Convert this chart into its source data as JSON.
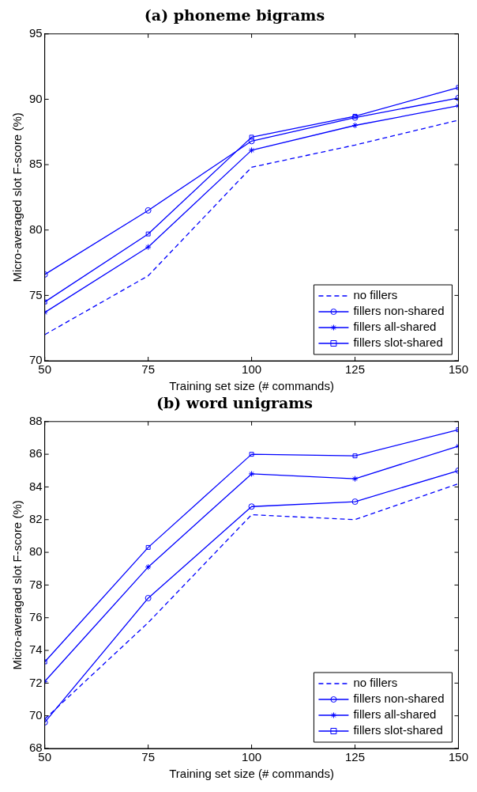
{
  "chart_data": [
    {
      "type": "line",
      "title": "(a) phoneme bigrams",
      "xlabel": "Training set size (# commands)",
      "ylabel": "Micro-averaged slot F-score (%)",
      "x": [
        50,
        75,
        100,
        125,
        150
      ],
      "xlim": [
        50,
        150
      ],
      "xticks": [
        50,
        75,
        100,
        125,
        150
      ],
      "ylim": [
        70,
        95
      ],
      "yticks": [
        70,
        75,
        80,
        85,
        90,
        95
      ],
      "grid": false,
      "legend": "bottom right",
      "series": [
        {
          "name": "no fillers",
          "color": "#0000ff",
          "line_style": "dashed",
          "marker": "none",
          "values": [
            72.0,
            76.5,
            84.8,
            86.5,
            88.4
          ]
        },
        {
          "name": "fillers non-shared",
          "color": "#0000ff",
          "line_style": "solid",
          "marker": "circle",
          "values": [
            76.6,
            81.5,
            86.8,
            88.6,
            90.1
          ]
        },
        {
          "name": "fillers all-shared",
          "color": "#0000ff",
          "line_style": "solid",
          "marker": "cross",
          "values": [
            73.7,
            78.7,
            86.1,
            88.0,
            89.5
          ]
        },
        {
          "name": "fillers slot-shared",
          "color": "#0000ff",
          "line_style": "solid",
          "marker": "square",
          "values": [
            74.5,
            79.7,
            87.1,
            88.7,
            90.9
          ]
        }
      ]
    },
    {
      "type": "line",
      "title": "(b) word unigrams",
      "xlabel": "Training set size (# commands)",
      "ylabel": "Micro-averaged slot F-score (%)",
      "x": [
        50,
        75,
        100,
        125,
        150
      ],
      "xlim": [
        50,
        150
      ],
      "xticks": [
        50,
        75,
        100,
        125,
        150
      ],
      "ylim": [
        68,
        88
      ],
      "yticks": [
        68,
        70,
        72,
        74,
        76,
        78,
        80,
        82,
        84,
        86,
        88
      ],
      "grid": false,
      "legend": "bottom right",
      "series": [
        {
          "name": "no fillers",
          "color": "#0000ff",
          "line_style": "dashed",
          "marker": "none",
          "values": [
            69.8,
            75.7,
            82.3,
            82.0,
            84.2
          ]
        },
        {
          "name": "fillers non-shared",
          "color": "#0000ff",
          "line_style": "solid",
          "marker": "circle",
          "values": [
            69.6,
            77.2,
            82.8,
            83.1,
            85.0
          ]
        },
        {
          "name": "fillers all-shared",
          "color": "#0000ff",
          "line_style": "solid",
          "marker": "cross",
          "values": [
            72.1,
            79.1,
            84.8,
            84.5,
            86.5
          ]
        },
        {
          "name": "fillers slot-shared",
          "color": "#0000ff",
          "line_style": "solid",
          "marker": "square",
          "values": [
            73.3,
            80.3,
            86.0,
            85.9,
            87.5
          ]
        }
      ]
    }
  ]
}
